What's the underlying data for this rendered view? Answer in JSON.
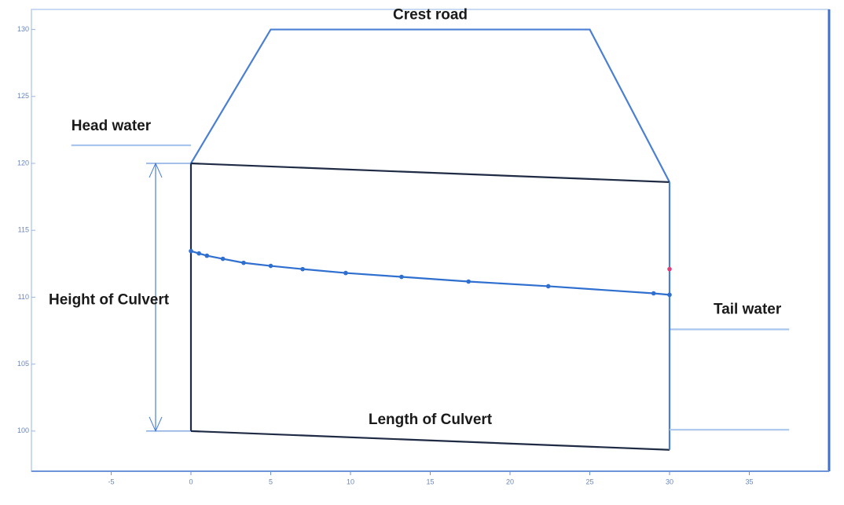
{
  "chart_data": {
    "type": "line",
    "xlim": [
      -10,
      40
    ],
    "ylim": [
      97,
      131.5
    ],
    "xticks": [
      -5,
      0,
      5,
      10,
      15,
      20,
      25,
      30,
      35
    ],
    "yticks": [
      100,
      105,
      110,
      115,
      120,
      125,
      130
    ],
    "annotations": [
      "Height of Culvert",
      "Length of Culvert"
    ],
    "series": [
      {
        "name": "Crest road",
        "color": "#4a7fd4",
        "x": [
          0,
          5,
          25,
          30
        ],
        "values": [
          120,
          130,
          130,
          118.6
        ]
      },
      {
        "name": "Head water",
        "color": "#a9c6ee",
        "x": [
          -7.5,
          0
        ],
        "values": [
          121.35,
          121.35
        ]
      },
      {
        "name": "Tail water",
        "color": "#a9c6ee",
        "x": [
          30,
          37.5
        ],
        "values": [
          107.6,
          107.6
        ]
      },
      {
        "color": "#1f2a44",
        "x": [
          0,
          30
        ],
        "values": [
          120,
          118.6
        ]
      },
      {
        "color": "#1f2a44",
        "x": [
          0,
          30
        ],
        "values": [
          100,
          98.6
        ]
      },
      {
        "color": "#1f2a44",
        "x": [
          0,
          0
        ],
        "values": [
          120,
          100
        ]
      },
      {
        "color": "#4a7fd4",
        "x": [
          30,
          30
        ],
        "values": [
          118.6,
          98.6
        ]
      },
      {
        "color": "#2f6fcf",
        "markers": true,
        "x": [
          0,
          0.5,
          1,
          2,
          3.3,
          5,
          7,
          9.7,
          13.2,
          17.4,
          22.4,
          29,
          30
        ],
        "values": [
          113.45,
          113.27,
          113.1,
          112.87,
          112.57,
          112.34,
          112.1,
          111.81,
          111.52,
          111.17,
          110.82,
          110.29,
          110.18
        ]
      },
      {
        "color": "#a9c6ee",
        "x": [
          30,
          37.5
        ],
        "values": [
          100.1,
          100.1
        ]
      },
      {
        "color": "#e0407a",
        "markers": true,
        "x": [
          30
        ],
        "values": [
          112.1
        ]
      }
    ]
  }
}
